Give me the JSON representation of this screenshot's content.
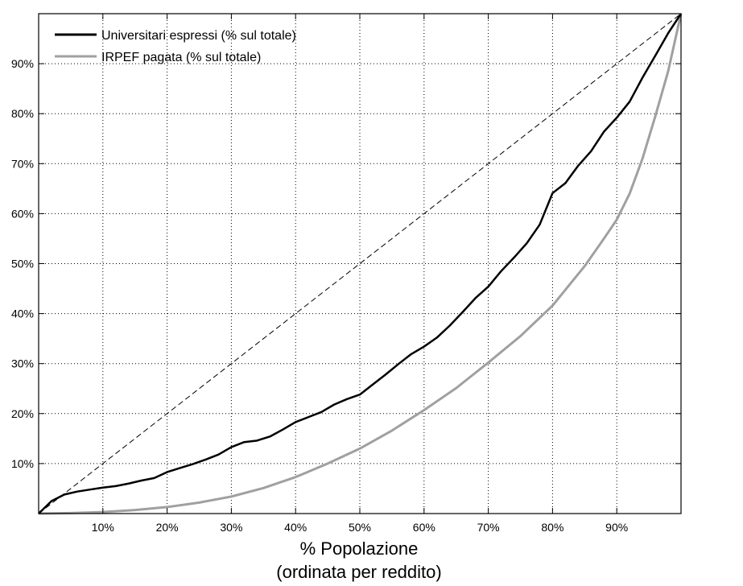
{
  "chart_data": {
    "type": "line",
    "title": "",
    "xlabel": "% Popolazione",
    "xlabel2": "(ordinata per reddito)",
    "ylabel": "",
    "xlim": [
      0,
      100
    ],
    "ylim": [
      0,
      100
    ],
    "xticks": [
      10,
      20,
      30,
      40,
      50,
      60,
      70,
      80,
      90
    ],
    "xtick_labels": [
      "10%",
      "20%",
      "30%",
      "40%",
      "50%",
      "60%",
      "70%",
      "80%",
      "90%"
    ],
    "yticks": [
      10,
      20,
      30,
      40,
      50,
      60,
      70,
      80,
      90
    ],
    "ytick_labels": [
      "10%",
      "20%",
      "30%",
      "40%",
      "50%",
      "60%",
      "70%",
      "80%",
      "90%"
    ],
    "grid": true,
    "legend": "top-left",
    "series": [
      {
        "name": "Universitari espressi (% sul totale)",
        "color": "#000000",
        "x": [
          0,
          2,
          4,
          6,
          8,
          10,
          12,
          14,
          16,
          18,
          20,
          22,
          24,
          26,
          28,
          30,
          32,
          34,
          36,
          38,
          40,
          42,
          44,
          46,
          48,
          50,
          52,
          54,
          56,
          58,
          60,
          62,
          64,
          66,
          68,
          70,
          72,
          74,
          76,
          78,
          80,
          82,
          84,
          86,
          88,
          90,
          92,
          94,
          96,
          98,
          100
        ],
        "y": [
          0,
          2.5,
          3.8,
          4.4,
          4.8,
          5.2,
          5.5,
          6,
          6.6,
          7.1,
          8.3,
          9.1,
          9.9,
          10.8,
          11.8,
          13.3,
          14.3,
          14.6,
          15.4,
          16.8,
          18.3,
          19.3,
          20.3,
          21.8,
          22.9,
          23.8,
          25.8,
          27.8,
          29.9,
          31.9,
          33.4,
          35.2,
          37.6,
          40.3,
          43.1,
          45.4,
          48.5,
          51.2,
          54.1,
          57.8,
          64.1,
          66.1,
          69.6,
          72.5,
          76.4,
          79.2,
          82.4,
          87.2,
          91.6,
          96.1,
          100
        ]
      },
      {
        "name": "IRPEF pagata (% sul totale)",
        "color": "#a0a0a0",
        "x": [
          0,
          5,
          10,
          15,
          20,
          25,
          30,
          35,
          40,
          45,
          50,
          55,
          60,
          65,
          70,
          75,
          80,
          85,
          88,
          90,
          92,
          94,
          96,
          98,
          100
        ],
        "y": [
          0,
          0.1,
          0.3,
          0.7,
          1.3,
          2.2,
          3.4,
          5.1,
          7.3,
          10,
          13,
          16.6,
          20.7,
          25.1,
          30.2,
          35.5,
          41.6,
          49.5,
          55,
          58.8,
          64,
          71,
          79.5,
          88.5,
          100
        ]
      }
    ],
    "reference_line": {
      "style": "dashed",
      "color": "#000000",
      "x": [
        0,
        100
      ],
      "y": [
        0,
        100
      ]
    }
  }
}
